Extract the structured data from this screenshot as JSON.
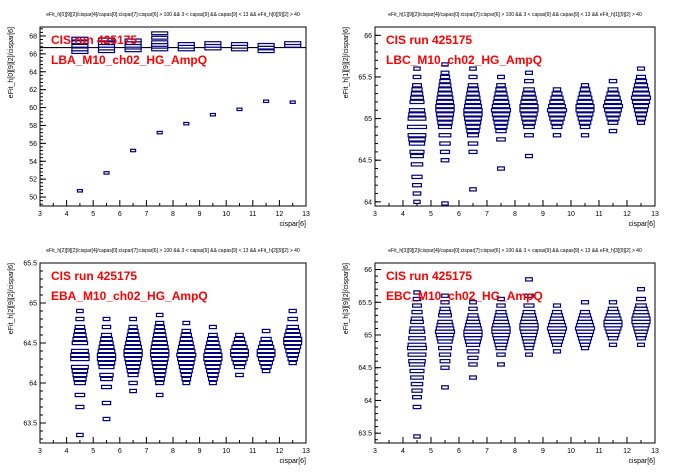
{
  "chart_data": [
    {
      "type": "box",
      "panel_title": "eFit_h[0][9][2]/cispar[4]/capas[0]:cispar[7]:cispar[6] > 100 && 3 < capas[9] && capas[9] < 13 && eFit_h[0][9][2] > 40",
      "xlabel": "cispar[6]",
      "ylabel": "eFit_h[0][9][2]/cispar[6]",
      "xlim": [
        3,
        13
      ],
      "ylim": [
        49,
        69
      ],
      "xticks": [
        3,
        4,
        5,
        6,
        7,
        8,
        9,
        10,
        11,
        12,
        13
      ],
      "yticks": [
        50,
        52,
        54,
        56,
        58,
        60,
        62,
        64,
        66,
        68
      ],
      "annotations": [
        "CIS run 425175",
        "LBA_M10_ch02_HG_AmpQ"
      ],
      "reference_line": 66.7,
      "x": [
        4.5,
        5.5,
        6.5,
        7.5,
        8.5,
        9.5,
        10.5,
        11.5,
        12.5
      ],
      "main_cluster": [
        [
          66.2,
          66.5,
          66.9,
          67.3,
          67.7
        ],
        [
          66.3,
          66.6,
          66.9,
          67.2,
          67.6
        ],
        [
          66.4,
          66.7,
          66.9,
          67.2,
          67.5
        ],
        [
          66.5,
          66.8,
          67.0,
          67.3,
          67.8,
          68.3
        ],
        [
          66.5,
          66.8,
          67.1
        ],
        [
          66.6,
          66.9,
          67.2
        ],
        [
          66.5,
          66.8,
          67.1
        ],
        [
          66.3,
          66.7,
          67.0
        ],
        [
          66.9,
          67.2
        ]
      ],
      "outliers": [
        [
          50.7
        ],
        [
          52.7
        ],
        [
          55.2
        ],
        [
          57.2
        ],
        [
          58.2
        ],
        [
          59.2
        ],
        [
          59.8
        ],
        [
          60.7
        ],
        [
          60.6
        ]
      ]
    },
    {
      "type": "box",
      "panel_title": "eFit_h[1][9][2]/cispar[4]/capas[0]:cispar[7]:cispar[6] > 100 && 3 < capas[9] && capas[9] < 13 && eFit_h[1][9][2] > 40",
      "xlabel": "cispar[6]",
      "ylabel": "eFit_h[1][9][2]/cispar[6]",
      "xlim": [
        3,
        13
      ],
      "ylim": [
        63.95,
        66.1
      ],
      "xticks": [
        3,
        4,
        5,
        6,
        7,
        8,
        9,
        10,
        11,
        12,
        13
      ],
      "yticks": [
        64,
        64.5,
        65,
        65.5,
        66
      ],
      "annotations": [
        "CIS run 425175",
        "LBC_M10_ch02_HG_AmpQ"
      ],
      "x": [
        4.5,
        5.5,
        6.5,
        7.5,
        8.5,
        9.5,
        10.5,
        11.5,
        12.5
      ],
      "bins": [
        [
          64.0,
          64.1,
          64.2,
          64.3,
          64.45,
          64.55,
          64.6,
          64.7,
          64.75,
          64.8,
          64.9,
          65.0,
          65.05,
          65.1,
          65.2,
          65.25,
          65.3,
          65.35,
          65.4,
          65.5,
          65.6
        ],
        [
          63.98,
          64.5,
          64.6,
          64.7,
          64.8,
          64.9,
          64.95,
          65.0,
          65.05,
          65.1,
          65.15,
          65.2,
          65.25,
          65.3,
          65.35,
          65.4,
          65.45,
          65.5,
          65.55,
          65.65
        ],
        [
          64.15,
          64.6,
          64.7,
          64.8,
          64.85,
          64.9,
          64.95,
          65.0,
          65.05,
          65.1,
          65.15,
          65.2,
          65.25,
          65.3,
          65.35,
          65.4,
          65.5,
          65.6
        ],
        [
          64.4,
          64.75,
          64.85,
          64.9,
          64.95,
          65.0,
          65.05,
          65.1,
          65.15,
          65.2,
          65.25,
          65.3,
          65.35,
          65.4,
          65.5
        ],
        [
          64.55,
          64.8,
          64.9,
          64.95,
          65.0,
          65.05,
          65.1,
          65.15,
          65.2,
          65.25,
          65.3,
          65.35,
          65.45,
          65.55
        ],
        [
          64.8,
          64.9,
          64.95,
          65.0,
          65.05,
          65.1,
          65.15,
          65.2,
          65.25,
          65.3,
          65.35
        ],
        [
          64.8,
          64.9,
          64.95,
          65.0,
          65.05,
          65.1,
          65.15,
          65.2,
          65.25,
          65.3,
          65.35,
          65.4
        ],
        [
          64.85,
          64.95,
          65.0,
          65.05,
          65.1,
          65.15,
          65.2,
          65.25,
          65.3,
          65.35,
          65.45
        ],
        [
          64.95,
          65.0,
          65.05,
          65.1,
          65.15,
          65.2,
          65.25,
          65.3,
          65.35,
          65.4,
          65.45,
          65.5,
          65.6
        ]
      ]
    },
    {
      "type": "box",
      "panel_title": "eFit_h[2][9][2]/cispar[4]/capas[0]:cispar[7]:cispar[6] > 100 && 3 < capas[9] && capas[9] < 13 && eFit_h[2][9][2] > 40",
      "xlabel": "cispar[6]",
      "ylabel": "eFit_h[2][9][2]/cispar[6]",
      "xlim": [
        3,
        13
      ],
      "ylim": [
        63.25,
        65.5
      ],
      "xticks": [
        3,
        4,
        5,
        6,
        7,
        8,
        9,
        10,
        11,
        12,
        13
      ],
      "yticks": [
        63.5,
        64,
        64.5,
        65,
        65.5
      ],
      "annotations": [
        "CIS run 425175",
        "EBA_M10_ch02_HG_AmpQ"
      ],
      "x": [
        4.5,
        5.5,
        6.5,
        7.5,
        8.5,
        9.5,
        10.5,
        11.5,
        12.5
      ],
      "bins": [
        [
          63.35,
          63.7,
          63.85,
          64.0,
          64.05,
          64.1,
          64.15,
          64.2,
          64.3,
          64.35,
          64.4,
          64.5,
          64.55,
          64.6,
          64.65,
          64.7,
          64.8,
          64.9
        ],
        [
          63.55,
          63.75,
          63.95,
          64.05,
          64.1,
          64.2,
          64.25,
          64.3,
          64.35,
          64.4,
          64.45,
          64.5,
          64.55,
          64.6,
          64.7,
          64.8
        ],
        [
          63.9,
          64.0,
          64.1,
          64.15,
          64.2,
          64.25,
          64.3,
          64.35,
          64.4,
          64.45,
          64.5,
          64.55,
          64.6,
          64.65,
          64.7,
          64.8
        ],
        [
          63.85,
          64.0,
          64.05,
          64.1,
          64.15,
          64.2,
          64.25,
          64.3,
          64.35,
          64.4,
          64.45,
          64.5,
          64.55,
          64.6,
          64.65,
          64.7,
          64.75,
          64.85
        ],
        [
          64.0,
          64.05,
          64.1,
          64.15,
          64.2,
          64.25,
          64.3,
          64.35,
          64.4,
          64.45,
          64.5,
          64.55,
          64.6,
          64.65,
          64.75
        ],
        [
          64.0,
          64.05,
          64.1,
          64.15,
          64.2,
          64.25,
          64.3,
          64.35,
          64.4,
          64.45,
          64.5,
          64.55,
          64.6,
          64.7
        ],
        [
          64.1,
          64.2,
          64.25,
          64.3,
          64.35,
          64.4,
          64.45,
          64.5,
          64.55,
          64.6
        ],
        [
          64.15,
          64.2,
          64.25,
          64.3,
          64.35,
          64.4,
          64.45,
          64.5,
          64.55,
          64.65
        ],
        [
          64.25,
          64.3,
          64.35,
          64.4,
          64.45,
          64.5,
          64.55,
          64.6,
          64.65,
          64.7,
          64.8,
          64.9
        ]
      ]
    },
    {
      "type": "box",
      "panel_title": "eFit_h[3][9][2]/cispar[4]/capas[0]:cispar[7]:cispar[6] > 100 && 3 < capas[9] && capas[9] < 13 && eFit_h[3][9][2] > 40",
      "xlabel": "cispar[6]",
      "ylabel": "eFit_h[3][9][2]/cispar[6]",
      "xlim": [
        3,
        13
      ],
      "ylim": [
        63.35,
        66.1
      ],
      "xticks": [
        3,
        4,
        5,
        6,
        7,
        8,
        9,
        10,
        11,
        12,
        13
      ],
      "yticks": [
        63.5,
        64,
        64.5,
        65,
        65.5,
        66
      ],
      "annotations": [
        "CIS run 425175",
        "EBC_M10_ch02_HG_AmpQ"
      ],
      "x": [
        4.5,
        5.5,
        6.5,
        7.5,
        8.5,
        9.5,
        10.5,
        11.5,
        12.5
      ],
      "bins": [
        [
          63.45,
          63.9,
          64.05,
          64.15,
          64.25,
          64.35,
          64.45,
          64.55,
          64.6,
          64.7,
          64.8,
          64.85,
          64.95,
          65.05,
          65.1,
          65.2,
          65.25,
          65.35,
          65.45,
          65.55,
          65.65
        ],
        [
          64.2,
          64.5,
          64.6,
          64.7,
          64.8,
          64.9,
          64.95,
          65.0,
          65.05,
          65.1,
          65.15,
          65.2,
          65.3,
          65.35,
          65.4,
          65.5,
          65.6
        ],
        [
          64.35,
          64.55,
          64.65,
          64.75,
          64.85,
          64.9,
          64.95,
          65.0,
          65.05,
          65.1,
          65.15,
          65.2,
          65.25,
          65.3,
          65.4,
          65.5
        ],
        [
          64.55,
          64.7,
          64.8,
          64.85,
          64.9,
          64.95,
          65.0,
          65.05,
          65.1,
          65.15,
          65.2,
          65.25,
          65.3,
          65.35,
          65.45,
          65.55
        ],
        [
          64.7,
          64.8,
          64.85,
          64.9,
          64.95,
          65.0,
          65.05,
          65.1,
          65.15,
          65.2,
          65.25,
          65.3,
          65.35,
          65.45,
          65.6,
          65.85
        ],
        [
          64.75,
          64.85,
          64.9,
          64.95,
          65.0,
          65.05,
          65.1,
          65.15,
          65.2,
          65.25,
          65.3,
          65.35,
          65.45
        ],
        [
          64.8,
          64.85,
          64.9,
          64.95,
          65.0,
          65.05,
          65.1,
          65.15,
          65.2,
          65.25,
          65.3,
          65.35,
          65.5
        ],
        [
          64.85,
          64.95,
          65.0,
          65.05,
          65.1,
          65.15,
          65.2,
          65.25,
          65.3,
          65.35,
          65.4,
          65.5
        ],
        [
          64.85,
          64.95,
          65.0,
          65.05,
          65.1,
          65.15,
          65.2,
          65.25,
          65.3,
          65.35,
          65.4,
          65.45,
          65.55,
          65.7
        ]
      ]
    }
  ]
}
